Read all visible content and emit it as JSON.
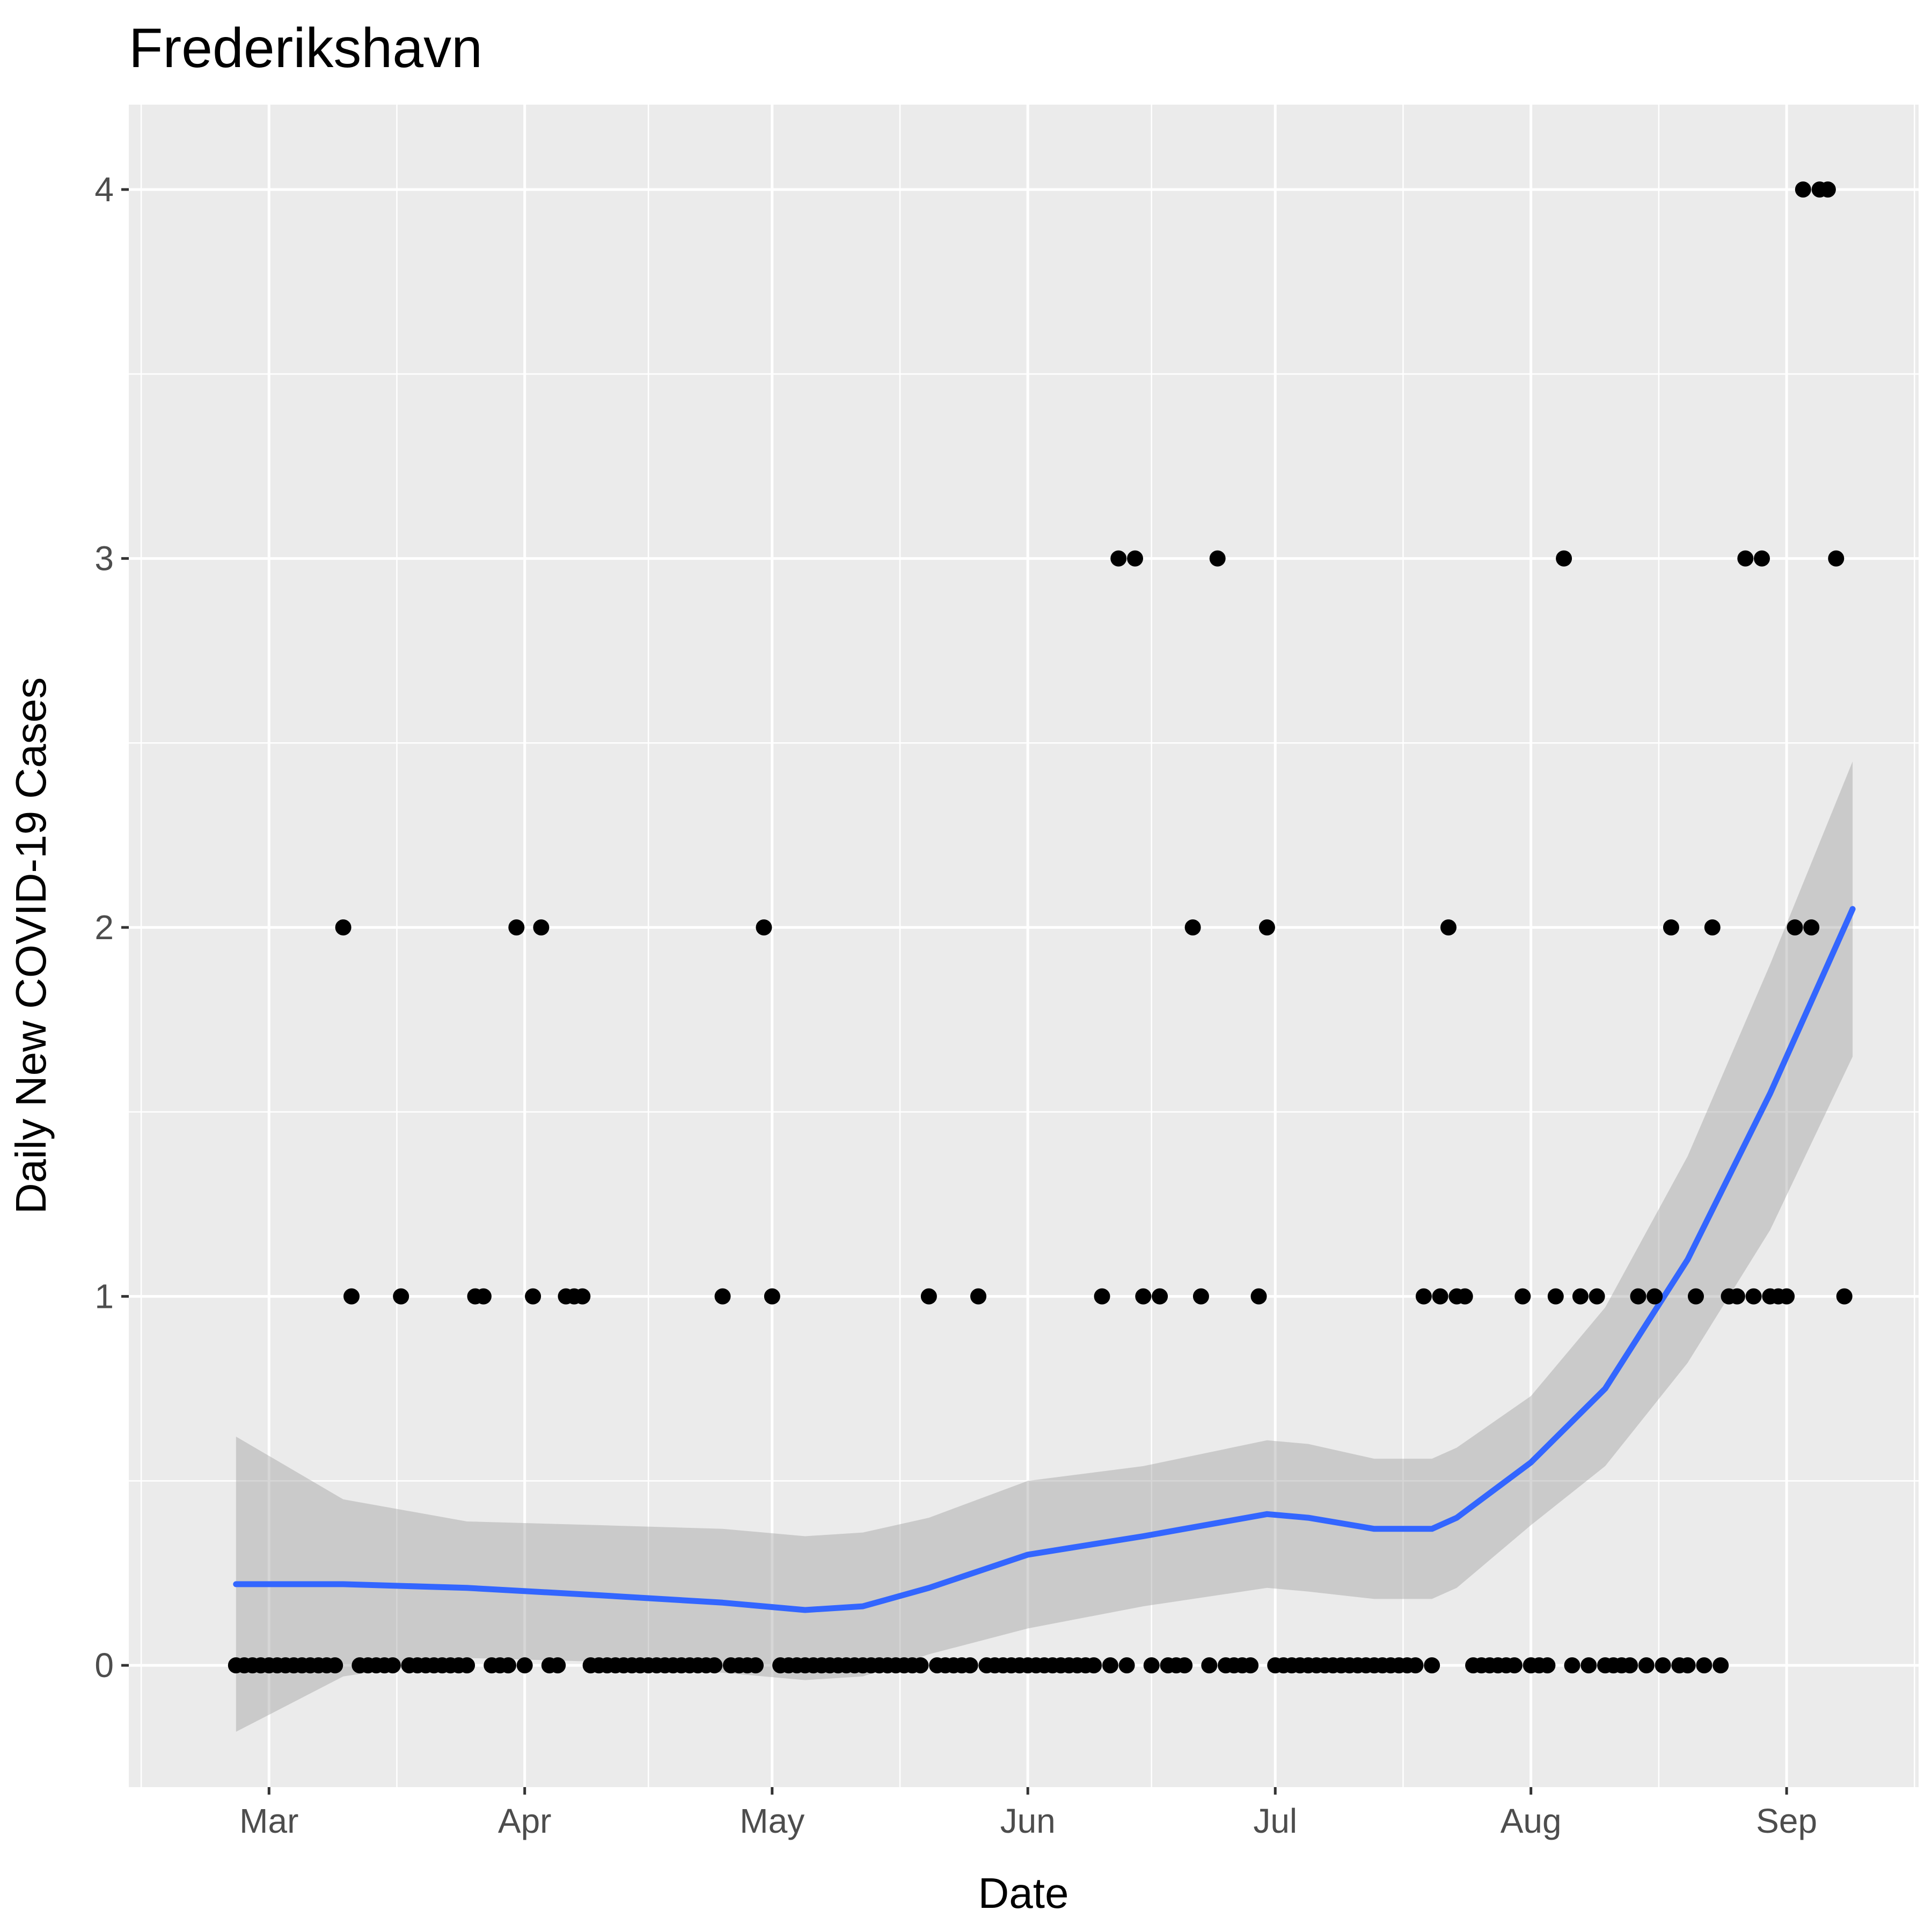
{
  "chart_data": {
    "type": "scatter",
    "title": "Frederikshavn",
    "xlabel": "Date",
    "ylabel": "Daily New COVID-19 Cases",
    "x_tick_labels": [
      "Mar",
      "Apr",
      "May",
      "Jun",
      "Jul",
      "Aug",
      "Sep"
    ],
    "x_tick_dates": [
      "2020-03-01",
      "2020-04-01",
      "2020-05-01",
      "2020-06-01",
      "2020-07-01",
      "2020-08-01",
      "2020-09-01"
    ],
    "y_tick_labels": [
      "0",
      "1",
      "2",
      "3",
      "4"
    ],
    "xlim": [
      "2020-02-13",
      "2020-09-17"
    ],
    "ylim": [
      -0.33,
      4.23
    ],
    "grid": true,
    "colors": {
      "panel": "#ebebeb",
      "points": "#000000",
      "smooth_line": "#3366ff",
      "confidence_band": "#999999"
    },
    "series": [
      {
        "type": "scatter",
        "points": [
          [
            "2020-02-26",
            0
          ],
          [
            "2020-02-27",
            0
          ],
          [
            "2020-02-28",
            0
          ],
          [
            "2020-02-29",
            0
          ],
          [
            "2020-03-01",
            0
          ],
          [
            "2020-03-02",
            0
          ],
          [
            "2020-03-03",
            0
          ],
          [
            "2020-03-04",
            0
          ],
          [
            "2020-03-05",
            0
          ],
          [
            "2020-03-06",
            0
          ],
          [
            "2020-03-07",
            0
          ],
          [
            "2020-03-08",
            0
          ],
          [
            "2020-03-09",
            0
          ],
          [
            "2020-03-10",
            2
          ],
          [
            "2020-03-11",
            1
          ],
          [
            "2020-03-12",
            0
          ],
          [
            "2020-03-13",
            0
          ],
          [
            "2020-03-14",
            0
          ],
          [
            "2020-03-15",
            0
          ],
          [
            "2020-03-16",
            0
          ],
          [
            "2020-03-17",
            1
          ],
          [
            "2020-03-18",
            0
          ],
          [
            "2020-03-19",
            0
          ],
          [
            "2020-03-20",
            0
          ],
          [
            "2020-03-21",
            0
          ],
          [
            "2020-03-22",
            0
          ],
          [
            "2020-03-23",
            0
          ],
          [
            "2020-03-24",
            0
          ],
          [
            "2020-03-25",
            0
          ],
          [
            "2020-03-26",
            1
          ],
          [
            "2020-03-27",
            1
          ],
          [
            "2020-03-28",
            0
          ],
          [
            "2020-03-29",
            0
          ],
          [
            "2020-03-30",
            0
          ],
          [
            "2020-03-31",
            2
          ],
          [
            "2020-04-01",
            0
          ],
          [
            "2020-04-02",
            1
          ],
          [
            "2020-04-03",
            2
          ],
          [
            "2020-04-04",
            0
          ],
          [
            "2020-04-05",
            0
          ],
          [
            "2020-04-06",
            1
          ],
          [
            "2020-04-07",
            1
          ],
          [
            "2020-04-08",
            1
          ],
          [
            "2020-04-09",
            0
          ],
          [
            "2020-04-10",
            0
          ],
          [
            "2020-04-11",
            0
          ],
          [
            "2020-04-12",
            0
          ],
          [
            "2020-04-13",
            0
          ],
          [
            "2020-04-14",
            0
          ],
          [
            "2020-04-15",
            0
          ],
          [
            "2020-04-16",
            0
          ],
          [
            "2020-04-17",
            0
          ],
          [
            "2020-04-18",
            0
          ],
          [
            "2020-04-19",
            0
          ],
          [
            "2020-04-20",
            0
          ],
          [
            "2020-04-21",
            0
          ],
          [
            "2020-04-22",
            0
          ],
          [
            "2020-04-23",
            0
          ],
          [
            "2020-04-24",
            0
          ],
          [
            "2020-04-25",
            1
          ],
          [
            "2020-04-26",
            0
          ],
          [
            "2020-04-27",
            0
          ],
          [
            "2020-04-28",
            0
          ],
          [
            "2020-04-29",
            0
          ],
          [
            "2020-04-30",
            2
          ],
          [
            "2020-05-01",
            1
          ],
          [
            "2020-05-02",
            0
          ],
          [
            "2020-05-03",
            0
          ],
          [
            "2020-05-04",
            0
          ],
          [
            "2020-05-05",
            0
          ],
          [
            "2020-05-06",
            0
          ],
          [
            "2020-05-07",
            0
          ],
          [
            "2020-05-08",
            0
          ],
          [
            "2020-05-09",
            0
          ],
          [
            "2020-05-10",
            0
          ],
          [
            "2020-05-11",
            0
          ],
          [
            "2020-05-12",
            0
          ],
          [
            "2020-05-13",
            0
          ],
          [
            "2020-05-14",
            0
          ],
          [
            "2020-05-15",
            0
          ],
          [
            "2020-05-16",
            0
          ],
          [
            "2020-05-17",
            0
          ],
          [
            "2020-05-18",
            0
          ],
          [
            "2020-05-19",
            0
          ],
          [
            "2020-05-20",
            1
          ],
          [
            "2020-05-21",
            0
          ],
          [
            "2020-05-22",
            0
          ],
          [
            "2020-05-23",
            0
          ],
          [
            "2020-05-24",
            0
          ],
          [
            "2020-05-25",
            0
          ],
          [
            "2020-05-26",
            1
          ],
          [
            "2020-05-27",
            0
          ],
          [
            "2020-05-28",
            0
          ],
          [
            "2020-05-29",
            0
          ],
          [
            "2020-05-30",
            0
          ],
          [
            "2020-05-31",
            0
          ],
          [
            "2020-06-01",
            0
          ],
          [
            "2020-06-02",
            0
          ],
          [
            "2020-06-03",
            0
          ],
          [
            "2020-06-04",
            0
          ],
          [
            "2020-06-05",
            0
          ],
          [
            "2020-06-06",
            0
          ],
          [
            "2020-06-07",
            0
          ],
          [
            "2020-06-08",
            0
          ],
          [
            "2020-06-09",
            0
          ],
          [
            "2020-06-10",
            1
          ],
          [
            "2020-06-11",
            0
          ],
          [
            "2020-06-12",
            3
          ],
          [
            "2020-06-13",
            0
          ],
          [
            "2020-06-14",
            3
          ],
          [
            "2020-06-15",
            1
          ],
          [
            "2020-06-16",
            0
          ],
          [
            "2020-06-17",
            1
          ],
          [
            "2020-06-18",
            0
          ],
          [
            "2020-06-19",
            0
          ],
          [
            "2020-06-20",
            0
          ],
          [
            "2020-06-21",
            2
          ],
          [
            "2020-06-22",
            1
          ],
          [
            "2020-06-23",
            0
          ],
          [
            "2020-06-24",
            3
          ],
          [
            "2020-06-25",
            0
          ],
          [
            "2020-06-26",
            0
          ],
          [
            "2020-06-27",
            0
          ],
          [
            "2020-06-28",
            0
          ],
          [
            "2020-06-29",
            1
          ],
          [
            "2020-06-30",
            2
          ],
          [
            "2020-07-01",
            0
          ],
          [
            "2020-07-02",
            0
          ],
          [
            "2020-07-03",
            0
          ],
          [
            "2020-07-04",
            0
          ],
          [
            "2020-07-05",
            0
          ],
          [
            "2020-07-06",
            0
          ],
          [
            "2020-07-07",
            0
          ],
          [
            "2020-07-08",
            0
          ],
          [
            "2020-07-09",
            0
          ],
          [
            "2020-07-10",
            0
          ],
          [
            "2020-07-11",
            0
          ],
          [
            "2020-07-12",
            0
          ],
          [
            "2020-07-13",
            0
          ],
          [
            "2020-07-14",
            0
          ],
          [
            "2020-07-15",
            0
          ],
          [
            "2020-07-16",
            0
          ],
          [
            "2020-07-17",
            0
          ],
          [
            "2020-07-18",
            0
          ],
          [
            "2020-07-19",
            1
          ],
          [
            "2020-07-20",
            0
          ],
          [
            "2020-07-21",
            1
          ],
          [
            "2020-07-22",
            2
          ],
          [
            "2020-07-23",
            1
          ],
          [
            "2020-07-24",
            1
          ],
          [
            "2020-07-25",
            0
          ],
          [
            "2020-07-26",
            0
          ],
          [
            "2020-07-27",
            0
          ],
          [
            "2020-07-28",
            0
          ],
          [
            "2020-07-29",
            0
          ],
          [
            "2020-07-30",
            0
          ],
          [
            "2020-07-31",
            1
          ],
          [
            "2020-08-01",
            0
          ],
          [
            "2020-08-02",
            0
          ],
          [
            "2020-08-03",
            0
          ],
          [
            "2020-08-04",
            1
          ],
          [
            "2020-08-05",
            3
          ],
          [
            "2020-08-06",
            0
          ],
          [
            "2020-08-07",
            1
          ],
          [
            "2020-08-08",
            0
          ],
          [
            "2020-08-09",
            1
          ],
          [
            "2020-08-10",
            0
          ],
          [
            "2020-08-11",
            0
          ],
          [
            "2020-08-12",
            0
          ],
          [
            "2020-08-13",
            0
          ],
          [
            "2020-08-14",
            1
          ],
          [
            "2020-08-15",
            0
          ],
          [
            "2020-08-16",
            1
          ],
          [
            "2020-08-17",
            0
          ],
          [
            "2020-08-18",
            2
          ],
          [
            "2020-08-19",
            0
          ],
          [
            "2020-08-20",
            0
          ],
          [
            "2020-08-21",
            1
          ],
          [
            "2020-08-22",
            0
          ],
          [
            "2020-08-23",
            2
          ],
          [
            "2020-08-24",
            0
          ],
          [
            "2020-08-25",
            1
          ],
          [
            "2020-08-26",
            1
          ],
          [
            "2020-08-27",
            3
          ],
          [
            "2020-08-28",
            1
          ],
          [
            "2020-08-29",
            3
          ],
          [
            "2020-08-30",
            1
          ],
          [
            "2020-08-31",
            1
          ],
          [
            "2020-09-01",
            1
          ],
          [
            "2020-09-02",
            2
          ],
          [
            "2020-09-03",
            4
          ],
          [
            "2020-09-04",
            2
          ],
          [
            "2020-09-05",
            4
          ],
          [
            "2020-09-06",
            4
          ],
          [
            "2020-09-07",
            3
          ],
          [
            "2020-09-08",
            1
          ]
        ]
      },
      {
        "type": "line",
        "points": [
          [
            "2020-02-26",
            0.22
          ],
          [
            "2020-03-10",
            0.22
          ],
          [
            "2020-03-25",
            0.21
          ],
          [
            "2020-04-10",
            0.19
          ],
          [
            "2020-04-25",
            0.17
          ],
          [
            "2020-05-05",
            0.15
          ],
          [
            "2020-05-12",
            0.16
          ],
          [
            "2020-05-20",
            0.21
          ],
          [
            "2020-06-01",
            0.3
          ],
          [
            "2020-06-15",
            0.35
          ],
          [
            "2020-06-30",
            0.41
          ],
          [
            "2020-07-05",
            0.4
          ],
          [
            "2020-07-13",
            0.37
          ],
          [
            "2020-07-20",
            0.37
          ],
          [
            "2020-07-23",
            0.4
          ],
          [
            "2020-08-01",
            0.55
          ],
          [
            "2020-08-10",
            0.75
          ],
          [
            "2020-08-20",
            1.1
          ],
          [
            "2020-08-30",
            1.55
          ],
          [
            "2020-09-09",
            2.05
          ]
        ]
      },
      {
        "type": "area",
        "lower": [
          [
            "2020-02-26",
            -0.18
          ],
          [
            "2020-03-10",
            -0.03
          ],
          [
            "2020-03-25",
            0.02
          ],
          [
            "2020-04-10",
            0.01
          ],
          [
            "2020-04-25",
            -0.02
          ],
          [
            "2020-05-05",
            -0.04
          ],
          [
            "2020-05-12",
            -0.03
          ],
          [
            "2020-05-20",
            0.03
          ],
          [
            "2020-06-01",
            0.1
          ],
          [
            "2020-06-15",
            0.16
          ],
          [
            "2020-06-30",
            0.21
          ],
          [
            "2020-07-05",
            0.2
          ],
          [
            "2020-07-13",
            0.18
          ],
          [
            "2020-07-20",
            0.18
          ],
          [
            "2020-07-23",
            0.21
          ],
          [
            "2020-08-01",
            0.38
          ],
          [
            "2020-08-10",
            0.54
          ],
          [
            "2020-08-20",
            0.82
          ],
          [
            "2020-08-30",
            1.18
          ],
          [
            "2020-09-09",
            1.65
          ]
        ],
        "upper": [
          [
            "2020-02-26",
            0.62
          ],
          [
            "2020-03-10",
            0.45
          ],
          [
            "2020-03-25",
            0.39
          ],
          [
            "2020-04-10",
            0.38
          ],
          [
            "2020-04-25",
            0.37
          ],
          [
            "2020-05-05",
            0.35
          ],
          [
            "2020-05-12",
            0.36
          ],
          [
            "2020-05-20",
            0.4
          ],
          [
            "2020-06-01",
            0.5
          ],
          [
            "2020-06-15",
            0.54
          ],
          [
            "2020-06-30",
            0.61
          ],
          [
            "2020-07-05",
            0.6
          ],
          [
            "2020-07-13",
            0.56
          ],
          [
            "2020-07-20",
            0.56
          ],
          [
            "2020-07-23",
            0.59
          ],
          [
            "2020-08-01",
            0.73
          ],
          [
            "2020-08-10",
            0.97
          ],
          [
            "2020-08-20",
            1.38
          ],
          [
            "2020-08-30",
            1.9
          ],
          [
            "2020-09-09",
            2.45
          ]
        ]
      }
    ]
  }
}
